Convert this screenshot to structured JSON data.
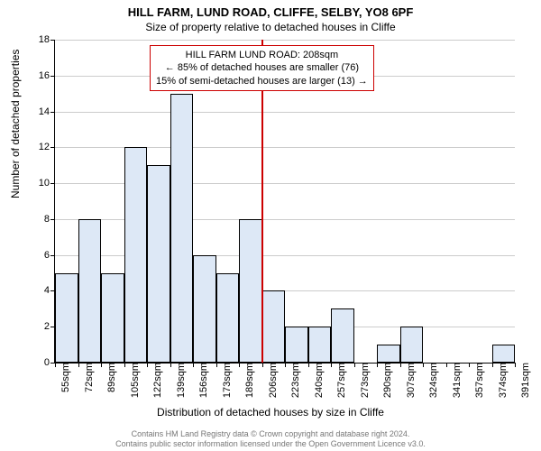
{
  "title": "HILL FARM, LUND ROAD, CLIFFE, SELBY, YO8 6PF",
  "subtitle": "Size of property relative to detached houses in Cliffe",
  "chart": {
    "type": "histogram",
    "ylabel": "Number of detached properties",
    "xlabel": "Distribution of detached houses by size in Cliffe",
    "ylim": [
      0,
      18
    ],
    "ytick_step": 2,
    "yticks": [
      0,
      2,
      4,
      6,
      8,
      10,
      12,
      14,
      16,
      18
    ],
    "xtick_labels": [
      "55sqm",
      "72sqm",
      "89sqm",
      "105sqm",
      "122sqm",
      "139sqm",
      "156sqm",
      "173sqm",
      "189sqm",
      "206sqm",
      "223sqm",
      "240sqm",
      "257sqm",
      "273sqm",
      "290sqm",
      "307sqm",
      "324sqm",
      "341sqm",
      "357sqm",
      "374sqm",
      "391sqm"
    ],
    "bar_color": "#dde8f6",
    "bar_border": "#000000",
    "grid_color": "#cccccc",
    "background_color": "#ffffff",
    "ref_line_color": "#cc0000",
    "ref_line_position": 9,
    "values": [
      5,
      8,
      5,
      12,
      11,
      15,
      6,
      5,
      8,
      4,
      2,
      2,
      3,
      0,
      1,
      2,
      0,
      0,
      0,
      1
    ],
    "n_bars": 20,
    "label_fontsize": 12,
    "tick_fontsize": 11,
    "title_fontsize": 13
  },
  "annotation": {
    "line1": "HILL FARM LUND ROAD: 208sqm",
    "line2": "← 85% of detached houses are smaller (76)",
    "line3": "15% of semi-detached houses are larger (13) →",
    "border_color": "#cc0000",
    "background_color": "#ffffff",
    "fontsize": 11
  },
  "footer": {
    "line1": "Contains HM Land Registry data © Crown copyright and database right 2024.",
    "line2": "Contains public sector information licensed under the Open Government Licence v3.0.",
    "color": "#777777",
    "fontsize": 9
  }
}
